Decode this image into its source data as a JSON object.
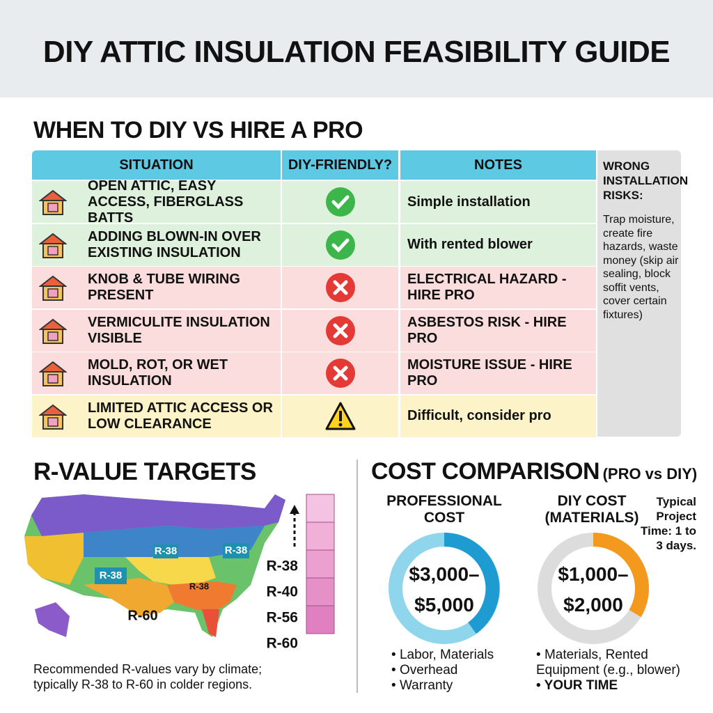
{
  "header": {
    "title": "DIY ATTIC INSULATION FEASIBILITY GUIDE"
  },
  "table": {
    "title": "WHEN TO DIY VS HIRE A PRO",
    "columns": [
      "SITUATION",
      "DIY-FRIENDLY?",
      "NOTES"
    ],
    "rows": [
      {
        "situation": "OPEN ATTIC, EASY ACCESS, FIBERGLASS BATTS",
        "status": "yes",
        "notes": "Simple installation"
      },
      {
        "situation": "ADDING BLOWN-IN OVER EXISTING INSULATION",
        "status": "yes",
        "notes": "With rented blower"
      },
      {
        "situation": "KNOB & TUBE WIRING PRESENT",
        "status": "no",
        "notes": "ELECTRICAL HAZARD - HIRE PRO"
      },
      {
        "situation": "VERMICULITE INSULATION VISIBLE",
        "status": "no",
        "notes": "ASBESTOS RISK - HIRE PRO"
      },
      {
        "situation": "MOLD, ROT, OR WET INSULATION",
        "status": "no",
        "notes": "MOISTURE ISSUE - HIRE PRO"
      },
      {
        "situation": "LIMITED ATTIC ACCESS OR LOW CLEARANCE",
        "status": "caution",
        "notes": "Difficult, consider pro"
      }
    ]
  },
  "sidebar": {
    "title": "WRONG INSTALLATION RISKS:",
    "text": "Trap moisture, create fire hazards, waste money (skip air sealing, block soffit vents, cover certain fixtures)"
  },
  "rvalue": {
    "title": "R-VALUE TARGETS",
    "map_labels": [
      "R-38",
      "R-38",
      "R-38",
      "R-38",
      "R-60"
    ],
    "scale": [
      "R-38",
      "R-40",
      "R-56",
      "R-60"
    ],
    "caption": "Recommended R-values vary by climate; typically R-38 to R-60 in colder regions."
  },
  "cost": {
    "title": "COST COMPARISON",
    "subtitle": "(PRO vs DIY)",
    "pro": {
      "title": "PROFESSIONAL COST",
      "range": [
        "$3,000–",
        "$5,000"
      ],
      "items": [
        "Labor, Materials",
        "Overhead",
        "Warranty"
      ]
    },
    "diy": {
      "title": "DIY COST (MATERIALS)",
      "range": [
        "$1,000–",
        "$2,000"
      ],
      "items": [
        "Materials, Rented Equipment (e.g., blower)",
        "YOUR TIME"
      ]
    },
    "note": "Typical Project Time: 1 to 3 days."
  }
}
